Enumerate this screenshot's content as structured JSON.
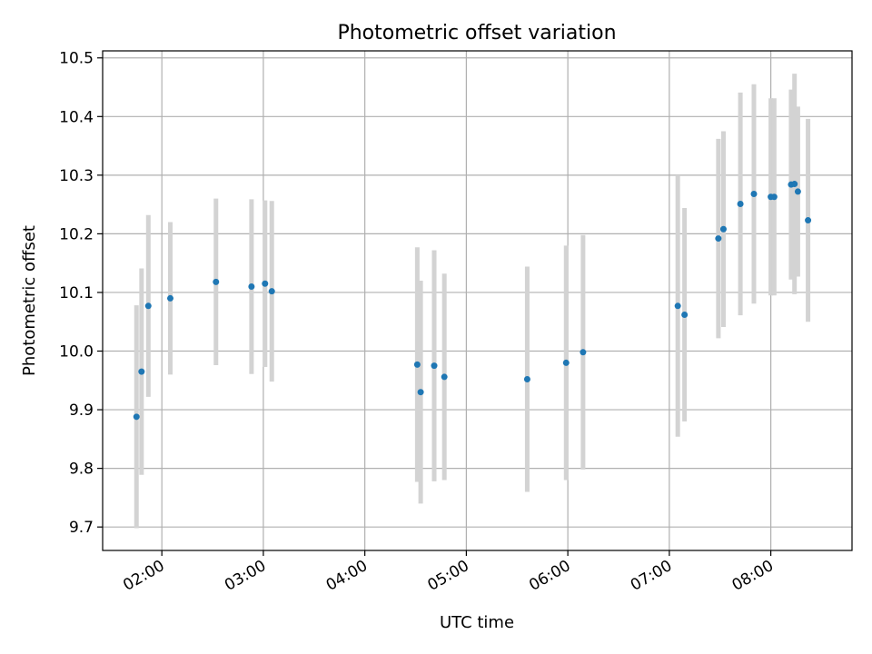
{
  "chart_data": {
    "type": "scatter",
    "title": "Photometric offset variation",
    "xlabel": "UTC time",
    "ylabel": "Photometric offset",
    "xlim": [
      "01:25",
      "08:48"
    ],
    "ylim": [
      9.66,
      10.512
    ],
    "grid": true,
    "x_ticks": [
      "02:00",
      "03:00",
      "04:00",
      "05:00",
      "06:00",
      "07:00",
      "08:00"
    ],
    "y_ticks": [
      "9.7",
      "9.8",
      "9.9",
      "10.0",
      "10.1",
      "10.2",
      "10.3",
      "10.4",
      "10.5"
    ],
    "colors": {
      "point": "#1f77b4",
      "errorbar": "#d3d3d3",
      "grid": "#b0b0b0"
    },
    "series": [
      {
        "points": [
          {
            "x": "01:45",
            "y": 9.888,
            "err": 0.19
          },
          {
            "x": "01:48",
            "y": 9.965,
            "err": 0.176
          },
          {
            "x": "01:52",
            "y": 10.077,
            "err": 0.155
          },
          {
            "x": "02:05",
            "y": 10.09,
            "err": 0.13
          },
          {
            "x": "02:32",
            "y": 10.118,
            "err": 0.142
          },
          {
            "x": "02:53",
            "y": 10.11,
            "err": 0.149
          },
          {
            "x": "03:01",
            "y": 10.115,
            "err": 0.142
          },
          {
            "x": "03:05",
            "y": 10.102,
            "err": 0.154
          },
          {
            "x": "04:31",
            "y": 9.977,
            "err": 0.2
          },
          {
            "x": "04:33",
            "y": 9.93,
            "err": 0.19
          },
          {
            "x": "04:41",
            "y": 9.975,
            "err": 0.197
          },
          {
            "x": "04:47",
            "y": 9.956,
            "err": 0.176
          },
          {
            "x": "05:36",
            "y": 9.952,
            "err": 0.192
          },
          {
            "x": "05:59",
            "y": 9.98,
            "err": 0.2
          },
          {
            "x": "06:09",
            "y": 9.998,
            "err": 0.2
          },
          {
            "x": "07:05",
            "y": 10.077,
            "err": 0.223
          },
          {
            "x": "07:09",
            "y": 10.062,
            "err": 0.182
          },
          {
            "x": "07:29",
            "y": 10.192,
            "err": 0.17
          },
          {
            "x": "07:32",
            "y": 10.208,
            "err": 0.167
          },
          {
            "x": "07:42",
            "y": 10.251,
            "err": 0.19
          },
          {
            "x": "07:50",
            "y": 10.268,
            "err": 0.187
          },
          {
            "x": "08:00",
            "y": 10.263,
            "err": 0.168
          },
          {
            "x": "08:02",
            "y": 10.263,
            "err": 0.168
          },
          {
            "x": "08:12",
            "y": 10.284,
            "err": 0.162
          },
          {
            "x": "08:14",
            "y": 10.285,
            "err": 0.188
          },
          {
            "x": "08:16",
            "y": 10.272,
            "err": 0.145
          },
          {
            "x": "08:22",
            "y": 10.223,
            "err": 0.173
          }
        ]
      }
    ]
  }
}
